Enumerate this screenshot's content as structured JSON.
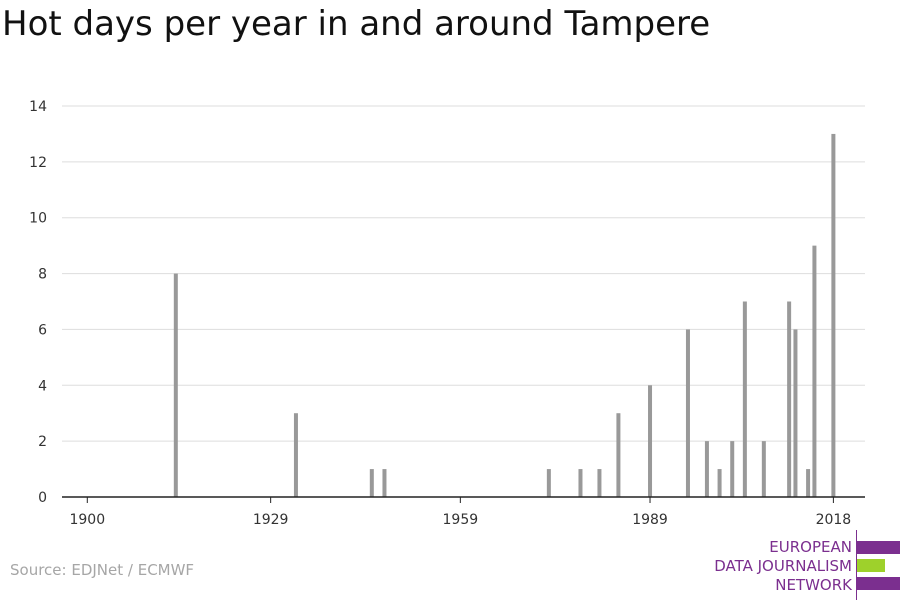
{
  "title": "Hot days per year in and around Tampere",
  "source": "Source: EDJNet / ECMWF",
  "logo": {
    "lines": [
      "EUROPEAN",
      "DATA JOURNALISM",
      "NETWORK"
    ],
    "colors": {
      "purple": "#7b2f8f",
      "green": "#9ed12b"
    }
  },
  "chart_data": {
    "type": "bar",
    "title": "Hot days per year in and around Tampere",
    "xlabel": "",
    "ylabel": "",
    "x_ticks": [
      1900,
      1929,
      1959,
      1989,
      2018
    ],
    "y_ticks": [
      0,
      2,
      4,
      6,
      8,
      10,
      12,
      14
    ],
    "xlim": [
      1896,
      2023
    ],
    "ylim": [
      0,
      14
    ],
    "grid": true,
    "bar_color": "#999999",
    "x": [
      1914,
      1933,
      1945,
      1947,
      1973,
      1978,
      1981,
      1984,
      1989,
      1995,
      1998,
      2000,
      2002,
      2004,
      2007,
      2011,
      2012,
      2014,
      2015,
      2018
    ],
    "values": [
      8,
      3,
      1,
      1,
      1,
      1,
      1,
      3,
      4,
      6,
      2,
      1,
      2,
      7,
      2,
      7,
      6,
      1,
      9,
      13
    ]
  }
}
